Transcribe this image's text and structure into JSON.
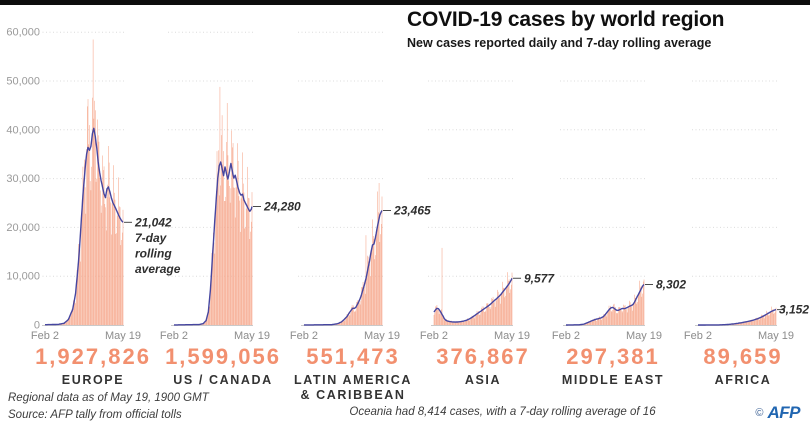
{
  "header_source": "bound from chart_data title/subtitle",
  "chart_data": {
    "type": "bar",
    "variant": "small-multiples: daily bars + 7-day rolling average line",
    "title": "COVID-19 cases by world region",
    "subtitle": "New cases reported daily and 7-day rolling average",
    "x_ticks": [
      "Feb 2",
      "May 19"
    ],
    "days": 108,
    "ylim": [
      0,
      60000
    ],
    "grid": "dotted horizontal per panel",
    "y_ticks": [
      {
        "value": 0,
        "label": "0"
      },
      {
        "value": 10000,
        "label": "10,000"
      },
      {
        "value": 20000,
        "label": "20,000"
      },
      {
        "value": 30000,
        "label": "30,000"
      },
      {
        "value": 40000,
        "label": "40,000"
      },
      {
        "value": 50000,
        "label": "50,000"
      },
      {
        "value": 60000,
        "label": "60,000"
      }
    ],
    "weekly_pattern": [
      0.74,
      0.92,
      1.1,
      1.2,
      1.14,
      1.04,
      0.84
    ],
    "jitter_pattern": [
      1.05,
      0.92,
      1.12,
      0.96,
      1.06,
      0.9,
      1.1,
      0.97,
      1.02,
      0.93,
      1.08
    ],
    "regions": [
      {
        "name": "europe",
        "label": "EUROPE",
        "total": "1,927,826",
        "end_value": 21042,
        "annotation_lines": [
          "21,042",
          "7-day",
          "rolling",
          "average"
        ],
        "avg_points": [
          [
            0,
            60
          ],
          [
            18,
            120
          ],
          [
            26,
            350
          ],
          [
            32,
            1100
          ],
          [
            38,
            3200
          ],
          [
            42,
            6500
          ],
          [
            46,
            13000
          ],
          [
            49,
            19500
          ],
          [
            52,
            26500
          ],
          [
            55,
            32000
          ],
          [
            57,
            35000
          ],
          [
            59,
            36400
          ],
          [
            61,
            35800
          ],
          [
            63,
            36600
          ],
          [
            65,
            39200
          ],
          [
            67,
            40300
          ],
          [
            69,
            38600
          ],
          [
            71,
            36200
          ],
          [
            73,
            33400
          ],
          [
            75,
            31200
          ],
          [
            77,
            29600
          ],
          [
            79,
            28200
          ],
          [
            81,
            26900
          ],
          [
            83,
            26100
          ],
          [
            85,
            27900
          ],
          [
            87,
            28300
          ],
          [
            89,
            27300
          ],
          [
            91,
            26100
          ],
          [
            93,
            25100
          ],
          [
            95,
            24500
          ],
          [
            97,
            23900
          ],
          [
            99,
            23200
          ],
          [
            101,
            22500
          ],
          [
            103,
            21900
          ],
          [
            105,
            21400
          ],
          [
            107,
            21042
          ]
        ],
        "spikes": [
          [
            58,
            44800
          ],
          [
            66,
            58500
          ],
          [
            69,
            44000
          ]
        ]
      },
      {
        "name": "us-canada",
        "label": "US / CANADA",
        "total": "1,599,056",
        "end_value": 24280,
        "annotation_lines": [
          "24,280"
        ],
        "avg_points": [
          [
            0,
            20
          ],
          [
            34,
            90
          ],
          [
            40,
            280
          ],
          [
            44,
            900
          ],
          [
            47,
            2600
          ],
          [
            50,
            7200
          ],
          [
            53,
            14500
          ],
          [
            56,
            21500
          ],
          [
            58,
            26000
          ],
          [
            60,
            30000
          ],
          [
            62,
            32600
          ],
          [
            64,
            33400
          ],
          [
            66,
            32100
          ],
          [
            68,
            30600
          ],
          [
            70,
            32400
          ],
          [
            72,
            31000
          ],
          [
            74,
            29900
          ],
          [
            76,
            31400
          ],
          [
            78,
            33100
          ],
          [
            80,
            31600
          ],
          [
            82,
            30100
          ],
          [
            84,
            30700
          ],
          [
            86,
            29400
          ],
          [
            88,
            28100
          ],
          [
            90,
            27100
          ],
          [
            92,
            26600
          ],
          [
            94,
            26800
          ],
          [
            96,
            25600
          ],
          [
            98,
            25000
          ],
          [
            100,
            24400
          ],
          [
            102,
            23800
          ],
          [
            104,
            23300
          ],
          [
            106,
            23700
          ],
          [
            107,
            24280
          ]
        ],
        "spikes": [
          [
            63,
            48800
          ],
          [
            66,
            43000
          ],
          [
            73,
            45500
          ]
        ]
      },
      {
        "name": "latin-america-caribbean",
        "label": "LATIN AMERICA & CARIBBEAN",
        "total": "551,473",
        "end_value": 23465,
        "annotation_lines": [
          "23,465"
        ],
        "avg_points": [
          [
            0,
            10
          ],
          [
            38,
            70
          ],
          [
            46,
            260
          ],
          [
            51,
            600
          ],
          [
            55,
            1100
          ],
          [
            59,
            1750
          ],
          [
            62,
            2450
          ],
          [
            65,
            3100
          ],
          [
            67,
            3450
          ],
          [
            69,
            3400
          ],
          [
            71,
            3600
          ],
          [
            74,
            4400
          ],
          [
            77,
            5400
          ],
          [
            79,
            6300
          ],
          [
            82,
            7800
          ],
          [
            84,
            8900
          ],
          [
            86,
            10200
          ],
          [
            88,
            11700
          ],
          [
            90,
            13200
          ],
          [
            92,
            15000
          ],
          [
            94,
            16400
          ],
          [
            96,
            16600
          ],
          [
            98,
            17900
          ],
          [
            100,
            19600
          ],
          [
            102,
            21100
          ],
          [
            104,
            22500
          ],
          [
            106,
            23200
          ],
          [
            107,
            23465
          ]
        ],
        "spikes": [
          [
            85,
            18400
          ],
          [
            103,
            29100
          ]
        ]
      },
      {
        "name": "asia",
        "label": "ASIA",
        "total": "376,867",
        "end_value": 9577,
        "annotation_lines": [
          "9,577"
        ],
        "avg_points": [
          [
            0,
            2650
          ],
          [
            2,
            3100
          ],
          [
            4,
            3400
          ],
          [
            6,
            3350
          ],
          [
            8,
            2950
          ],
          [
            10,
            2450
          ],
          [
            12,
            1950
          ],
          [
            14,
            1350
          ],
          [
            16,
            1000
          ],
          [
            18,
            850
          ],
          [
            21,
            720
          ],
          [
            25,
            640
          ],
          [
            29,
            600
          ],
          [
            33,
            630
          ],
          [
            37,
            700
          ],
          [
            41,
            810
          ],
          [
            45,
            1000
          ],
          [
            49,
            1280
          ],
          [
            53,
            1650
          ],
          [
            57,
            2080
          ],
          [
            61,
            2500
          ],
          [
            65,
            2920
          ],
          [
            69,
            3340
          ],
          [
            73,
            3760
          ],
          [
            77,
            4200
          ],
          [
            80,
            4620
          ],
          [
            83,
            5050
          ],
          [
            86,
            5420
          ],
          [
            89,
            5820
          ],
          [
            92,
            6320
          ],
          [
            95,
            6900
          ],
          [
            98,
            7450
          ],
          [
            101,
            8050
          ],
          [
            104,
            8700
          ],
          [
            106,
            9250
          ],
          [
            107,
            9577
          ]
        ],
        "spikes": [
          [
            11,
            15800
          ]
        ]
      },
      {
        "name": "middle-east",
        "label": "MIDDLE EAST",
        "total": "297,381",
        "end_value": 8302,
        "annotation_lines": [
          "8,302"
        ],
        "avg_points": [
          [
            0,
            5
          ],
          [
            18,
            50
          ],
          [
            24,
            160
          ],
          [
            28,
            380
          ],
          [
            32,
            640
          ],
          [
            36,
            900
          ],
          [
            40,
            1120
          ],
          [
            44,
            1280
          ],
          [
            48,
            1450
          ],
          [
            51,
            1700
          ],
          [
            54,
            2150
          ],
          [
            57,
            2750
          ],
          [
            60,
            3300
          ],
          [
            62,
            3550
          ],
          [
            64,
            3600
          ],
          [
            66,
            3450
          ],
          [
            68,
            3150
          ],
          [
            70,
            3000
          ],
          [
            72,
            3020
          ],
          [
            74,
            3160
          ],
          [
            76,
            3320
          ],
          [
            78,
            3400
          ],
          [
            80,
            3340
          ],
          [
            82,
            3440
          ],
          [
            84,
            3590
          ],
          [
            86,
            3760
          ],
          [
            88,
            3900
          ],
          [
            90,
            4020
          ],
          [
            92,
            4220
          ],
          [
            94,
            4700
          ],
          [
            96,
            5300
          ],
          [
            98,
            5900
          ],
          [
            100,
            6450
          ],
          [
            102,
            7050
          ],
          [
            104,
            7650
          ],
          [
            106,
            8150
          ],
          [
            107,
            8302
          ]
        ],
        "spikes": [
          [
            106,
            8900
          ]
        ]
      },
      {
        "name": "africa",
        "label": "AFRICA",
        "total": "89,659",
        "end_value": 3152,
        "annotation_lines": [
          "3,152"
        ],
        "avg_points": [
          [
            0,
            2
          ],
          [
            28,
            25
          ],
          [
            36,
            60
          ],
          [
            42,
            120
          ],
          [
            48,
            210
          ],
          [
            54,
            330
          ],
          [
            60,
            480
          ],
          [
            66,
            650
          ],
          [
            72,
            850
          ],
          [
            77,
            1050
          ],
          [
            82,
            1300
          ],
          [
            86,
            1550
          ],
          [
            90,
            1850
          ],
          [
            94,
            2200
          ],
          [
            98,
            2550
          ],
          [
            101,
            2800
          ],
          [
            104,
            3000
          ],
          [
            106,
            3120
          ],
          [
            107,
            3152
          ]
        ],
        "spikes": []
      }
    ]
  },
  "footer": {
    "note_line1": "Regional data as of May 19, 1900 GMT",
    "note_line2": "Source: AFP tally from official tolls",
    "oceania_note": "Oceania had 8,414 cases, with a 7-day rolling average of 16",
    "credit_symbol": "©",
    "credit_text": "AFP"
  },
  "colors": {
    "bar": "#F6A88D",
    "line": "#4646A0",
    "accent_number": "#F2906F",
    "grid": "#DCDCDC",
    "baseline": "#C9C9C9",
    "afp_blue": "#2166B1"
  }
}
